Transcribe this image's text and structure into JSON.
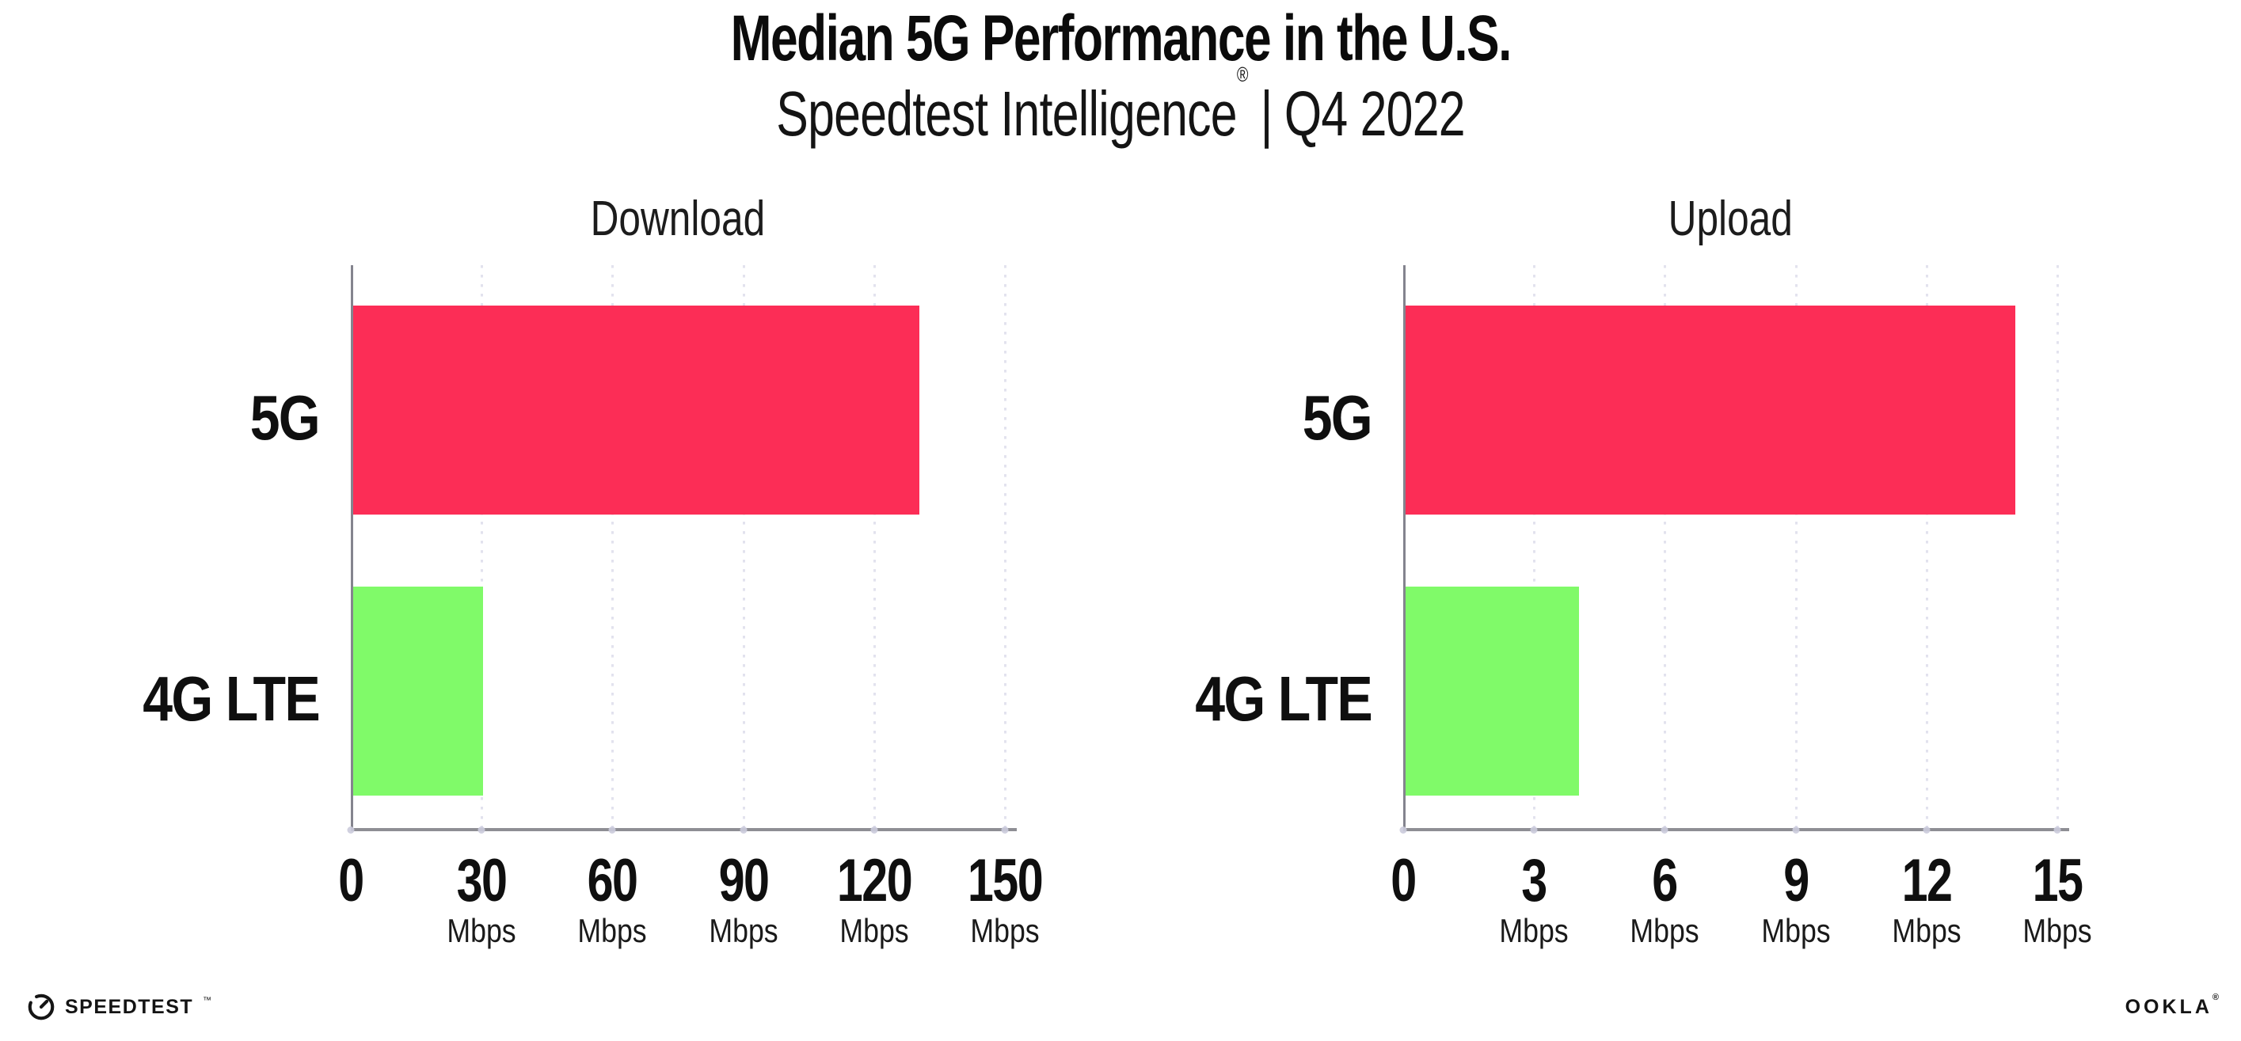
{
  "header": {
    "title": "Median 5G Performance in the U.S.",
    "subtitle_brand": "Speedtest Intelligence",
    "subtitle_reg": "®",
    "subtitle_sep": "|",
    "subtitle_period": "Q4 2022"
  },
  "colors": {
    "bar_5g": "#FC2D56",
    "bar_4g_lte": "#80FA69",
    "gridline": "#E2E2EE",
    "axis_line": "#8A8A92",
    "text": "#0F0F0F",
    "background": "#FFFFFF"
  },
  "chart_data": [
    {
      "type": "bar",
      "orientation": "horizontal",
      "title": "Download",
      "categories": [
        "5G",
        "4G LTE"
      ],
      "values": [
        130,
        30
      ],
      "unit": "Mbps",
      "xlim": [
        0,
        150
      ],
      "xticks": [
        0,
        30,
        60,
        90,
        120,
        150
      ],
      "xtick_unit": "Mbps",
      "bar_colors": [
        "#FC2D56",
        "#80FA69"
      ],
      "grid": "dotted vertical gridlines",
      "legend": "none"
    },
    {
      "type": "bar",
      "orientation": "horizontal",
      "title": "Upload",
      "categories": [
        "5G",
        "4G LTE"
      ],
      "values": [
        14,
        4
      ],
      "unit": "Mbps",
      "xlim": [
        0,
        15
      ],
      "xticks": [
        0,
        3,
        6,
        9,
        12,
        15
      ],
      "xtick_unit": "Mbps",
      "bar_colors": [
        "#FC2D56",
        "#80FA69"
      ],
      "grid": "dotted vertical gridlines",
      "legend": "none"
    }
  ],
  "footer": {
    "speedtest_label": "SPEEDTEST",
    "speedtest_tm": "™",
    "ookla_label": "OOKLA",
    "ookla_reg": "®"
  }
}
